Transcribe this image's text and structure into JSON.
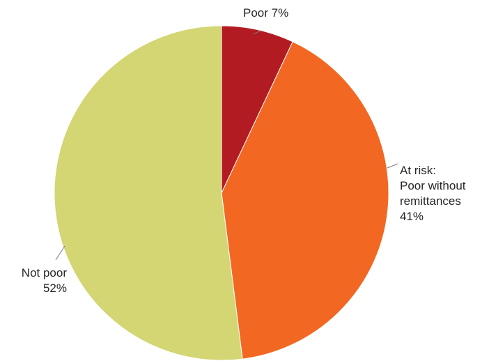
{
  "chart_data": {
    "type": "pie",
    "title": "",
    "slices": [
      {
        "name": "Poor",
        "value": 7,
        "color": "#b31b23",
        "label_lines": [
          "Poor 7%"
        ]
      },
      {
        "name": "At risk: Poor without remittances",
        "value": 41,
        "color": "#f26722",
        "label_lines": [
          "At risk:",
          "Poor without",
          "remittances",
          "41%"
        ]
      },
      {
        "name": "Not poor",
        "value": 52,
        "color": "#d3d672",
        "label_lines": [
          "Not poor",
          "52%"
        ]
      }
    ],
    "start": "12 o'clock",
    "direction": "clockwise",
    "legend": "none"
  }
}
